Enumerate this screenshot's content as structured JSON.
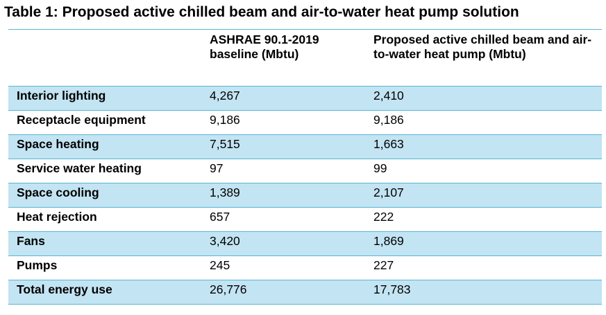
{
  "title": "Table 1: Proposed active chilled beam and air-to-water heat pump solution",
  "table": {
    "headers": [
      "",
      "ASHRAE 90.1-2019 baseline (Mbtu)",
      "Proposed active chilled beam and air-to-water heat pump (Mbtu)"
    ],
    "rows": [
      {
        "label": "Interior lighting",
        "baseline": "4,267",
        "proposed": "2,410"
      },
      {
        "label": "Receptacle equipment",
        "baseline": "9,186",
        "proposed": "9,186"
      },
      {
        "label": "Space heating",
        "baseline": "7,515",
        "proposed": "1,663"
      },
      {
        "label": "Service water heating",
        "baseline": "97",
        "proposed": "99"
      },
      {
        "label": "Space cooling",
        "baseline": "1,389",
        "proposed": "2,107"
      },
      {
        "label": "Heat rejection",
        "baseline": "657",
        "proposed": "222"
      },
      {
        "label": "Fans",
        "baseline": "3,420",
        "proposed": "1,869"
      },
      {
        "label": "Pumps",
        "baseline": "245",
        "proposed": "227"
      },
      {
        "label": "Total energy use",
        "baseline": "26,776",
        "proposed": "17,783"
      }
    ]
  },
  "colors": {
    "row_shading": "#c3e4f2",
    "rule_line": "#55b6d6"
  }
}
